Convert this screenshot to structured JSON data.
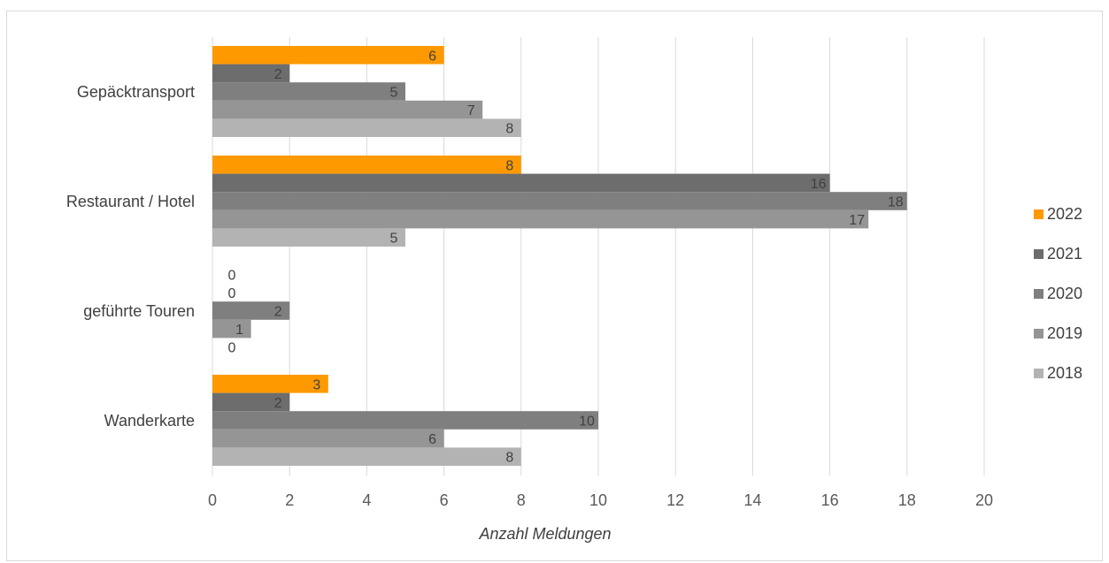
{
  "chart_data": {
    "type": "bar",
    "orientation": "horizontal",
    "categories": [
      "Gepäcktransport",
      "Restaurant / Hotel",
      "geführte Touren",
      "Wanderkarte"
    ],
    "series": [
      {
        "name": "2022",
        "color": "#ff9900",
        "values": [
          6,
          8,
          0,
          3
        ]
      },
      {
        "name": "2021",
        "color": "#6d6d6d",
        "values": [
          2,
          16,
          0,
          2
        ]
      },
      {
        "name": "2020",
        "color": "#7f7f7f",
        "values": [
          5,
          18,
          2,
          10
        ]
      },
      {
        "name": "2019",
        "color": "#959595",
        "values": [
          7,
          17,
          1,
          6
        ]
      },
      {
        "name": "2018",
        "color": "#b3b3b3",
        "values": [
          8,
          5,
          0,
          8
        ]
      }
    ],
    "xlabel": "Anzahl Meldungen",
    "xlim": [
      0,
      20
    ],
    "xticks": [
      "0",
      "2",
      "4",
      "6",
      "8",
      "10",
      "12",
      "14",
      "16",
      "18",
      "20"
    ],
    "grid": "vertical",
    "legend": "right",
    "data_labels": true
  }
}
